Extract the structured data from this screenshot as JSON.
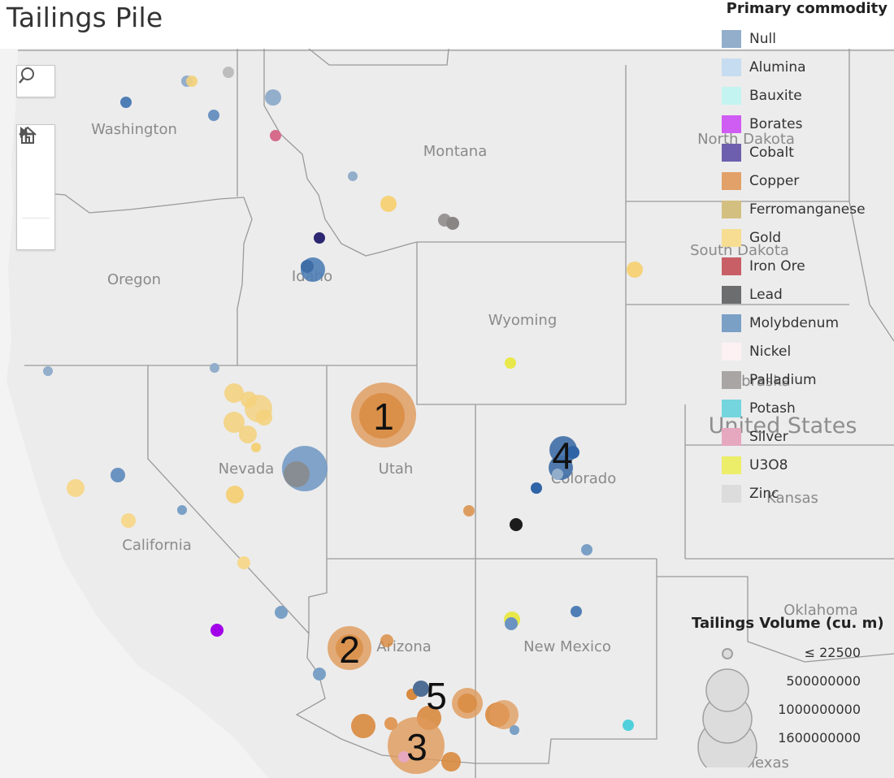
{
  "title": "Tailings Pile",
  "legend": {
    "title": "Primary commodity",
    "items": [
      {
        "label": "Null",
        "color": "#93aecb"
      },
      {
        "label": "Alumina",
        "color": "#c6dcf0"
      },
      {
        "label": "Bauxite",
        "color": "#c4f4f1"
      },
      {
        "label": "Borates",
        "color": "#cf5cf3"
      },
      {
        "label": "Cobalt",
        "color": "#6e5fae"
      },
      {
        "label": "Copper",
        "color": "#e2a168"
      },
      {
        "label": "Ferromanganese",
        "color": "#d3bf7f"
      },
      {
        "label": "Gold",
        "color": "#f6dd92"
      },
      {
        "label": "Iron Ore",
        "color": "#c85f66"
      },
      {
        "label": "Lead",
        "color": "#6b6d6f"
      },
      {
        "label": "Molybdenum",
        "color": "#7aa0c6"
      },
      {
        "label": "Nickel",
        "color": "#fdf1f4"
      },
      {
        "label": "Palladium",
        "color": "#aaa5a5"
      },
      {
        "label": "Potash",
        "color": "#74d5df"
      },
      {
        "label": "Silver",
        "color": "#e6a8bf"
      },
      {
        "label": "U3O8",
        "color": "#ecee69"
      },
      {
        "label": "Zinc",
        "color": "#dcdcdc"
      }
    ]
  },
  "size_legend": {
    "title": "Tailings Volume (cu. m)",
    "items": [
      {
        "label": "≤ 22500",
        "volume": 22500
      },
      {
        "label": "500000000",
        "volume": 500000000
      },
      {
        "label": "1000000000",
        "volume": 1000000000
      },
      {
        "label": "1600000000",
        "volume": 1600000000
      }
    ]
  },
  "map": {
    "state_labels": [
      "Washington",
      "Montana",
      "Oregon",
      "Idaho",
      "Wyoming",
      "Nevada",
      "Utah",
      "Colorado",
      "California",
      "Arizona",
      "New Mexico",
      "Kansas",
      "Oklahoma",
      "Texas",
      "North Dakota",
      "South Dakota",
      "Nebraska"
    ],
    "country_label": "United States",
    "annotations": [
      "1",
      "2",
      "3",
      "4",
      "5"
    ]
  },
  "controls": {
    "search": "search-icon",
    "zoom_in": "plus-icon",
    "zoom_out": "minus-icon",
    "home": "home-icon",
    "pan": "play-icon"
  }
}
